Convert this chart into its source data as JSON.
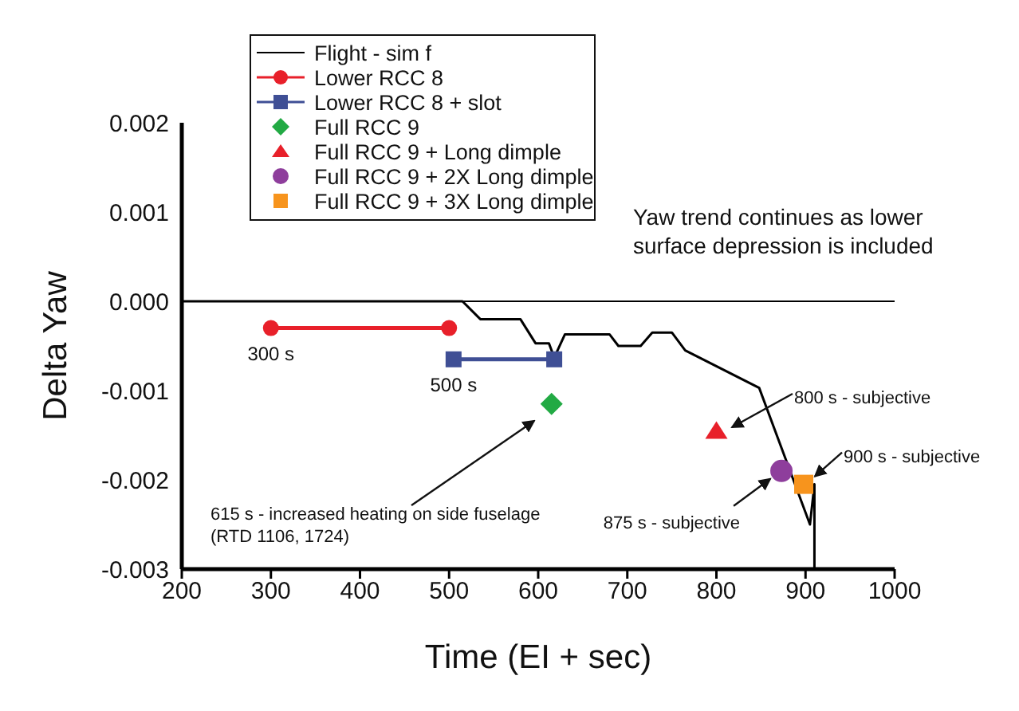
{
  "chart_data": {
    "type": "line",
    "xlabel": "Time (EI + sec)",
    "ylabel": "Delta Yaw",
    "xlim": [
      200,
      1000
    ],
    "xticks": [
      200,
      300,
      400,
      500,
      600,
      700,
      800,
      900,
      1000
    ],
    "ylim": [
      -0.003,
      0.002
    ],
    "yticks": [
      -0.003,
      -0.002,
      -0.001,
      {
        "value": 0,
        "label": "0.000"
      },
      0.001,
      0.002
    ],
    "grid": false,
    "legend": "top left",
    "ref_lines": [
      {
        "axis": "y",
        "value": 0,
        "color": "#000000"
      }
    ],
    "series": [
      {
        "name": "Flight - sim f",
        "marker": "none",
        "color": "#000000",
        "x": [
          200,
          515,
          535,
          580,
          597,
          612,
          618,
          630,
          680,
          690,
          715,
          728,
          750,
          765,
          848,
          905,
          910,
          910
        ],
        "values": [
          0,
          0,
          -0.0002,
          -0.0002,
          -0.00047,
          -0.00047,
          -0.00063,
          -0.00037,
          -0.00037,
          -0.0005,
          -0.0005,
          -0.00035,
          -0.00035,
          -0.00055,
          -0.00097,
          -0.0025,
          -0.00205,
          -0.003
        ]
      },
      {
        "name": "Lower RCC 8",
        "marker": "circle",
        "color": "#e8202a",
        "x": [
          300,
          500
        ],
        "values": [
          -0.0003,
          -0.0003
        ]
      },
      {
        "name": "Lower RCC 8 + slot",
        "marker": "square",
        "color": "#3f4f95",
        "x": [
          505,
          618
        ],
        "values": [
          -0.00065,
          -0.00065
        ]
      },
      {
        "name": "Full RCC 9",
        "type": "scatter",
        "marker": "diamond",
        "color": "#22aa44",
        "x": [
          615
        ],
        "values": [
          -0.00115
        ]
      },
      {
        "name": "Full RCC 9 + Long dimple",
        "type": "scatter",
        "marker": "triangle",
        "color": "#e8202a",
        "x": [
          800
        ],
        "values": [
          -0.00145
        ]
      },
      {
        "name": "Full RCC 9 + 2X Long dimple",
        "type": "scatter",
        "marker": "circle",
        "color": "#8e3e9c",
        "x": [
          873
        ],
        "values": [
          -0.0019
        ]
      },
      {
        "name": "Full RCC 9 + 3X Long dimple",
        "type": "scatter",
        "marker": "square",
        "color": "#f7941d",
        "x": [
          898
        ],
        "values": [
          -0.00205
        ]
      }
    ],
    "annotations": [
      {
        "text": "300 s",
        "x": 300,
        "y": -0.0003
      },
      {
        "text": "500 s",
        "x": 505,
        "y": -0.00065
      },
      "615 s - increased heating on side fuselage\n(RTD 1106, 1724)",
      "800 s - subjective",
      {
        "text": "875 s - subjective",
        "x": 873,
        "y": -0.0019
      },
      {
        "text": "900 s - subjective",
        "x": 898,
        "y": -0.00205
      },
      "Yaw trend continues as lower surface depression is included"
    ]
  }
}
